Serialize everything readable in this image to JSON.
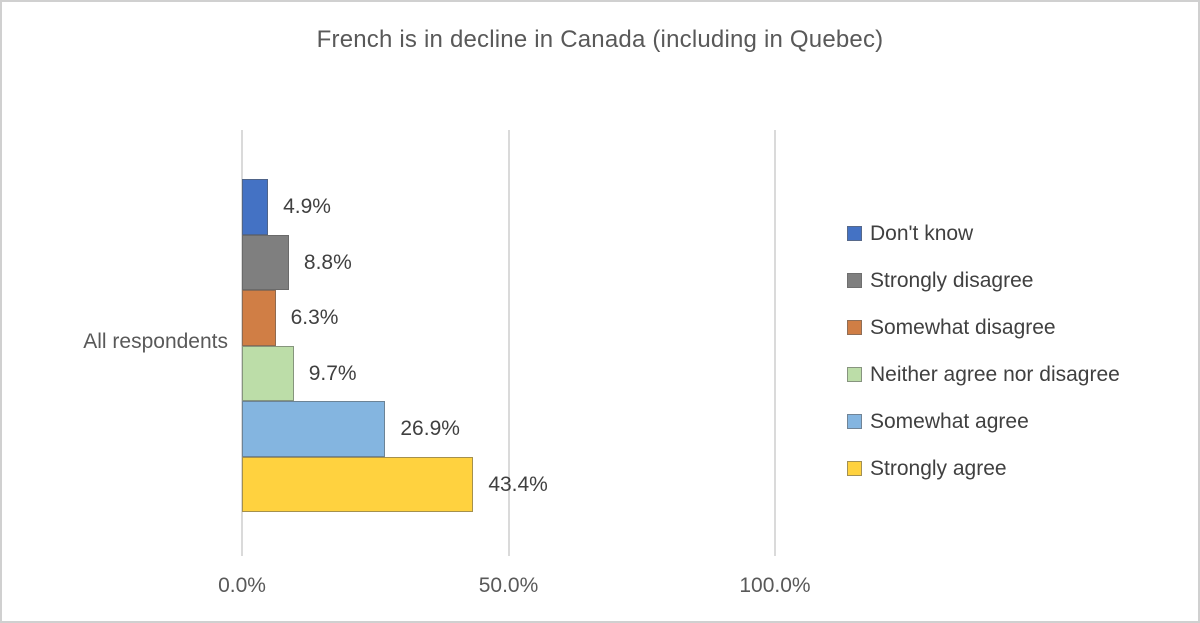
{
  "window": {
    "background": "#ffffff",
    "border_color": "#d0d0d0"
  },
  "chart_data": {
    "type": "bar",
    "orientation": "horizontal",
    "title": "French is in decline in Canada (including in Quebec)",
    "category": "All respondents",
    "series": [
      {
        "name": "Don't know",
        "value": 4.9,
        "label": "4.9%",
        "color": "#4472C4"
      },
      {
        "name": "Strongly disagree",
        "value": 8.8,
        "label": "8.8%",
        "color": "#7F7F7F"
      },
      {
        "name": "Somewhat disagree",
        "value": 6.3,
        "label": "6.3%",
        "color": "#D07E45"
      },
      {
        "name": "Neither agree nor disagree",
        "value": 9.7,
        "label": "9.7%",
        "color": "#BCDDA8"
      },
      {
        "name": "Somewhat agree",
        "value": 26.9,
        "label": "26.9%",
        "color": "#84B5E0"
      },
      {
        "name": "Strongly agree",
        "value": 43.4,
        "label": "43.4%",
        "color": "#FFD23F"
      }
    ],
    "x_axis": {
      "min": 0,
      "max": 100,
      "ticks": [
        {
          "label": "0.0%",
          "value": 0
        },
        {
          "label": "50.0%",
          "value": 50
        },
        {
          "label": "100.0%",
          "value": 100
        }
      ]
    },
    "grid": true,
    "gridline_color": "#dadada",
    "legend_position": "right"
  }
}
